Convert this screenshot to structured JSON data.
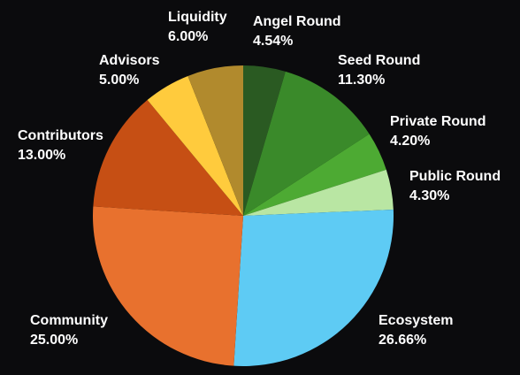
{
  "chart_data": {
    "type": "pie",
    "title": "",
    "start_angle_deg": 0,
    "direction": "clockwise",
    "slices": [
      {
        "label": "Angel Round",
        "value": 4.54,
        "value_text": "4.54%",
        "color": "#2a5a22"
      },
      {
        "label": "Seed Round",
        "value": 11.3,
        "value_text": "11.30%",
        "color": "#3a8a2a"
      },
      {
        "label": "Private Round",
        "value": 4.2,
        "value_text": "4.20%",
        "color": "#4daa33"
      },
      {
        "label": "Public Round",
        "value": 4.3,
        "value_text": "4.30%",
        "color": "#b9e6a3"
      },
      {
        "label": "Ecosystem",
        "value": 26.66,
        "value_text": "26.66%",
        "color": "#5ecbf4"
      },
      {
        "label": "Community",
        "value": 25.0,
        "value_text": "25.00%",
        "color": "#e8712e"
      },
      {
        "label": "Contributors",
        "value": 13.0,
        "value_text": "13.00%",
        "color": "#c64f14"
      },
      {
        "label": "Advisors",
        "value": 5.0,
        "value_text": "5.00%",
        "color": "#ffcb3d"
      },
      {
        "label": "Liquidity",
        "value": 6.0,
        "value_text": "6.00%",
        "color": "#b18a2d"
      }
    ]
  }
}
